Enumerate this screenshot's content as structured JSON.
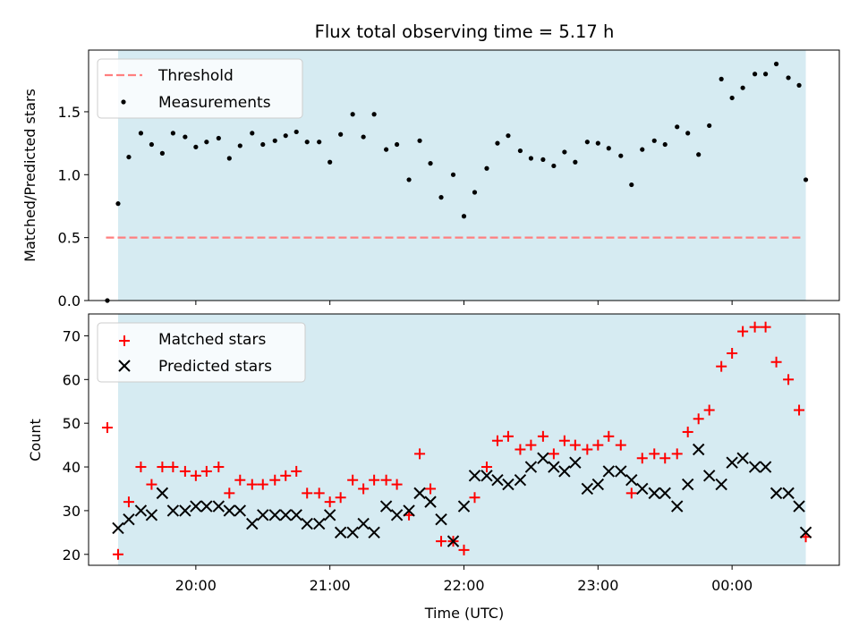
{
  "figure": {
    "title": "Flux total observing time = 5.17 h",
    "xlabel": "Time (UTC)"
  },
  "chart_data": [
    {
      "type": "scatter",
      "panel": "top",
      "ylabel": "Matched/Predicted stars",
      "ylim": [
        0,
        1.99
      ],
      "yticks": [
        0.0,
        0.5,
        1.0,
        1.5
      ],
      "ytick_labels": [
        "0.0",
        "0.5",
        "1.0",
        "1.5"
      ],
      "legend": "top-left",
      "threshold": {
        "name": "Threshold",
        "value": 0.5,
        "color": "#ff7f7f",
        "x_start_hour": 19.33,
        "x_end_hour": 24.53
      },
      "shaded_span_hours": [
        19.42,
        24.55
      ],
      "shade_color": "#add8e6",
      "series": [
        {
          "name": "Measurements",
          "color": "#000000",
          "x_hours": [
            19.34,
            19.42,
            19.5,
            19.59,
            19.67,
            19.75,
            19.83,
            19.92,
            20.0,
            20.08,
            20.17,
            20.25,
            20.33,
            20.42,
            20.5,
            20.59,
            20.67,
            20.75,
            20.83,
            20.92,
            21.0,
            21.08,
            21.17,
            21.25,
            21.33,
            21.42,
            21.5,
            21.59,
            21.67,
            21.75,
            21.83,
            21.92,
            22.0,
            22.08,
            22.17,
            22.25,
            22.33,
            22.42,
            22.5,
            22.59,
            22.67,
            22.75,
            22.83,
            22.92,
            23.0,
            23.08,
            23.17,
            23.25,
            23.33,
            23.42,
            23.5,
            23.59,
            23.67,
            23.75,
            23.83,
            23.92,
            24.0,
            24.08,
            24.17,
            24.25,
            24.33,
            24.42,
            24.5,
            24.55
          ],
          "y": [
            0.0,
            0.77,
            1.14,
            1.33,
            1.24,
            1.17,
            1.33,
            1.3,
            1.22,
            1.26,
            1.29,
            1.13,
            1.23,
            1.33,
            1.24,
            1.27,
            1.31,
            1.34,
            1.26,
            1.26,
            1.1,
            1.32,
            1.48,
            1.3,
            1.48,
            1.2,
            1.24,
            0.96,
            1.27,
            1.09,
            0.82,
            1.0,
            0.67,
            0.86,
            1.05,
            1.25,
            1.31,
            1.19,
            1.13,
            1.12,
            1.07,
            1.18,
            1.1,
            1.26,
            1.25,
            1.21,
            1.15,
            0.92,
            1.2,
            1.27,
            1.24,
            1.38,
            1.33,
            1.16,
            1.39,
            1.76,
            1.61,
            1.69,
            1.8,
            1.8,
            1.88,
            1.77,
            1.71,
            0.96
          ]
        }
      ]
    },
    {
      "type": "scatter",
      "panel": "bottom",
      "ylabel": "Count",
      "ylim": [
        17.5,
        75
      ],
      "yticks": [
        20,
        30,
        40,
        50,
        60,
        70
      ],
      "ytick_labels": [
        "20",
        "30",
        "40",
        "50",
        "60",
        "70"
      ],
      "xticks_hours": [
        20,
        21,
        22,
        23,
        24
      ],
      "xtick_labels": [
        "20:00",
        "21:00",
        "22:00",
        "23:00",
        "00:00"
      ],
      "xlim_hours": [
        19.2,
        24.8
      ],
      "legend": "top-left",
      "shaded_span_hours": [
        19.42,
        24.55
      ],
      "shade_color": "#add8e6",
      "series": [
        {
          "name": "Matched stars",
          "marker": "plus",
          "color": "#ff0000",
          "x_hours": [
            19.34,
            19.42,
            19.5,
            19.59,
            19.67,
            19.75,
            19.83,
            19.92,
            20.0,
            20.08,
            20.17,
            20.25,
            20.33,
            20.42,
            20.5,
            20.59,
            20.67,
            20.75,
            20.83,
            20.92,
            21.0,
            21.08,
            21.17,
            21.25,
            21.33,
            21.42,
            21.5,
            21.59,
            21.67,
            21.75,
            21.83,
            21.92,
            22.0,
            22.08,
            22.17,
            22.25,
            22.33,
            22.42,
            22.5,
            22.59,
            22.67,
            22.75,
            22.83,
            22.92,
            23.0,
            23.08,
            23.17,
            23.25,
            23.33,
            23.42,
            23.5,
            23.59,
            23.67,
            23.75,
            23.83,
            23.92,
            24.0,
            24.08,
            24.17,
            24.25,
            24.33,
            24.42,
            24.5,
            24.55
          ],
          "y": [
            49,
            20,
            32,
            40,
            36,
            40,
            40,
            39,
            38,
            39,
            40,
            34,
            37,
            36,
            36,
            37,
            38,
            39,
            34,
            34,
            32,
            33,
            37,
            35,
            37,
            37,
            36,
            29,
            43,
            35,
            23,
            23,
            21,
            33,
            40,
            46,
            47,
            44,
            45,
            47,
            43,
            46,
            45,
            44,
            45,
            47,
            45,
            34,
            42,
            43,
            42,
            43,
            48,
            51,
            53,
            63,
            66,
            71,
            72,
            72,
            64,
            60,
            53,
            24
          ]
        },
        {
          "name": "Predicted stars",
          "marker": "x",
          "color": "#000000",
          "x_hours": [
            19.42,
            19.5,
            19.59,
            19.67,
            19.75,
            19.83,
            19.92,
            20.0,
            20.08,
            20.17,
            20.25,
            20.33,
            20.42,
            20.5,
            20.59,
            20.67,
            20.75,
            20.83,
            20.92,
            21.0,
            21.08,
            21.17,
            21.25,
            21.33,
            21.42,
            21.5,
            21.59,
            21.67,
            21.75,
            21.83,
            21.92,
            22.0,
            22.08,
            22.17,
            22.25,
            22.33,
            22.42,
            22.5,
            22.59,
            22.67,
            22.75,
            22.83,
            22.92,
            23.0,
            23.08,
            23.17,
            23.25,
            23.33,
            23.42,
            23.5,
            23.59,
            23.67,
            23.75,
            23.83,
            23.92,
            24.0,
            24.08,
            24.17,
            24.25,
            24.33,
            24.42,
            24.5,
            24.55
          ],
          "y": [
            26,
            28,
            30,
            29,
            34,
            30,
            30,
            31,
            31,
            31,
            30,
            30,
            27,
            29,
            29,
            29,
            29,
            27,
            27,
            29,
            25,
            25,
            27,
            25,
            31,
            29,
            30,
            34,
            32,
            28,
            23,
            31,
            38,
            38,
            37,
            36,
            37,
            40,
            42,
            40,
            39,
            41,
            35,
            36,
            39,
            39,
            37,
            35,
            34,
            34,
            31,
            36,
            44,
            38,
            36,
            41,
            42,
            40,
            40,
            34,
            34,
            31,
            25
          ]
        }
      ]
    }
  ]
}
